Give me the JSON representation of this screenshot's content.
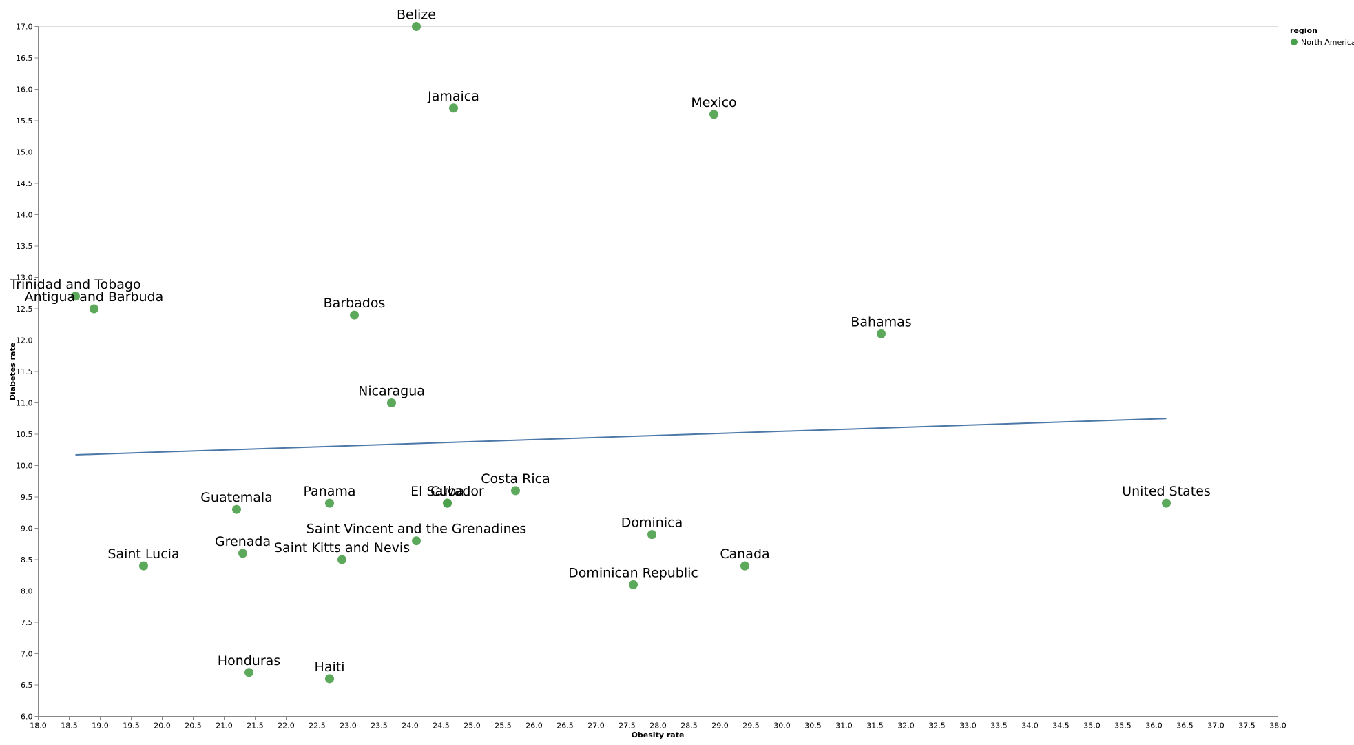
{
  "chart_data": {
    "type": "scatter",
    "xlabel": "Obesity rate",
    "ylabel": "Diabetes rate",
    "xlim": [
      18.0,
      38.0
    ],
    "ylim": [
      6.0,
      17.0
    ],
    "x_ticks": [
      "18.0",
      "18.5",
      "19.0",
      "19.5",
      "20.0",
      "20.5",
      "21.0",
      "21.5",
      "22.0",
      "22.5",
      "23.0",
      "23.5",
      "24.0",
      "24.5",
      "25.0",
      "25.5",
      "26.0",
      "26.5",
      "27.0",
      "27.5",
      "28.0",
      "28.5",
      "29.0",
      "29.5",
      "30.0",
      "30.5",
      "31.0",
      "31.5",
      "32.0",
      "32.5",
      "33.0",
      "33.5",
      "34.0",
      "34.5",
      "35.0",
      "35.5",
      "36.0",
      "36.5",
      "37.0",
      "37.5",
      "38.0"
    ],
    "y_ticks": [
      "6.0",
      "6.5",
      "7.0",
      "7.5",
      "8.0",
      "8.5",
      "9.0",
      "9.5",
      "10.0",
      "10.5",
      "11.0",
      "11.5",
      "12.0",
      "12.5",
      "13.0",
      "13.5",
      "14.0",
      "14.5",
      "15.0",
      "15.5",
      "16.0",
      "16.5",
      "17.0"
    ],
    "grid": false,
    "legend": {
      "title": "region",
      "placement": "top-right",
      "entries": [
        {
          "name": "North America",
          "color": "#4aa04a"
        }
      ]
    },
    "point_color": "#4aa04a",
    "trendline": {
      "color": "#4c78a8",
      "x": [
        18.6,
        36.2
      ],
      "y": [
        10.17,
        10.75
      ]
    },
    "series": [
      {
        "name": "North America",
        "points": [
          {
            "label": "Belize",
            "x": 24.1,
            "y": 17.0
          },
          {
            "label": "Jamaica",
            "x": 24.7,
            "y": 15.7
          },
          {
            "label": "Mexico",
            "x": 28.9,
            "y": 15.6
          },
          {
            "label": "Trinidad and Tobago",
            "x": 18.6,
            "y": 12.7
          },
          {
            "label": "Antigua and Barbuda",
            "x": 18.9,
            "y": 12.5
          },
          {
            "label": "Barbados",
            "x": 23.1,
            "y": 12.4
          },
          {
            "label": "Bahamas",
            "x": 31.6,
            "y": 12.1
          },
          {
            "label": "Nicaragua",
            "x": 23.7,
            "y": 11.0
          },
          {
            "label": "Costa Rica",
            "x": 25.7,
            "y": 9.6
          },
          {
            "label": "El Salvador",
            "x": 24.6,
            "y": 9.4
          },
          {
            "label": "Cuba",
            "x": 24.6,
            "y": 9.4
          },
          {
            "label": "Panama",
            "x": 22.7,
            "y": 9.4
          },
          {
            "label": "United States",
            "x": 36.2,
            "y": 9.4
          },
          {
            "label": "Guatemala",
            "x": 21.2,
            "y": 9.3
          },
          {
            "label": "Dominica",
            "x": 27.9,
            "y": 8.9
          },
          {
            "label": "Saint Vincent and the Grenadines",
            "x": 24.1,
            "y": 8.8
          },
          {
            "label": "Grenada",
            "x": 21.3,
            "y": 8.6
          },
          {
            "label": "Saint Kitts and Nevis",
            "x": 22.9,
            "y": 8.5
          },
          {
            "label": "Saint Lucia",
            "x": 19.7,
            "y": 8.4
          },
          {
            "label": "Canada",
            "x": 29.4,
            "y": 8.4
          },
          {
            "label": "Dominican Republic",
            "x": 27.6,
            "y": 8.1
          },
          {
            "label": "Honduras",
            "x": 21.4,
            "y": 6.7
          },
          {
            "label": "Haiti",
            "x": 22.7,
            "y": 6.6
          }
        ]
      }
    ]
  }
}
